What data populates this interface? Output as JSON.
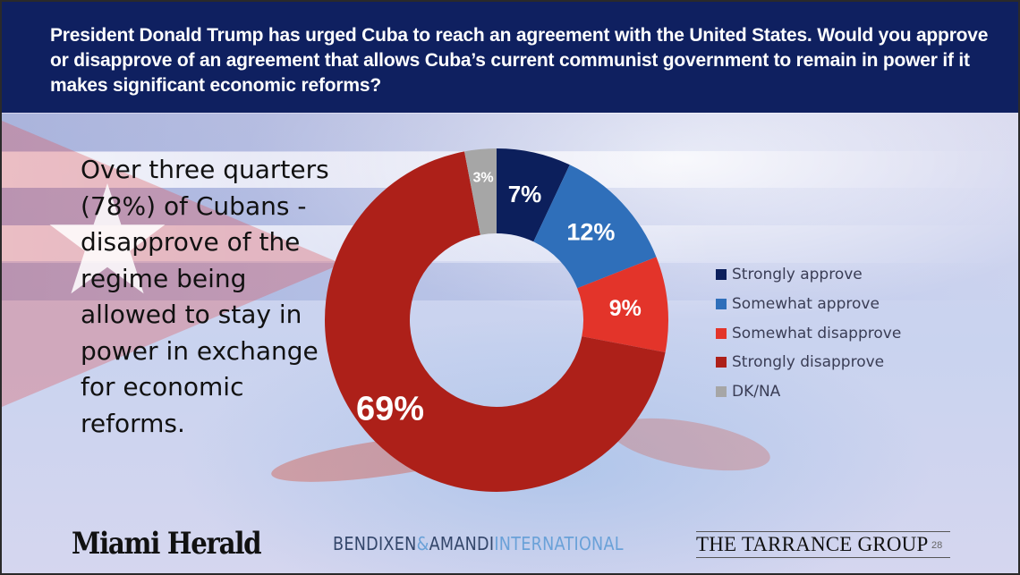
{
  "header": {
    "question": "President Donald Trump has urged Cuba to reach an agreement with the United States. Would you approve or disapprove of an agreement that allows Cuba’s current communist government to remain in power if it makes significant economic reforms?"
  },
  "callout": {
    "text": "Over three quarters (78%) of Cubans - disapprove of the regime being allowed to stay in power in exchange for economic reforms."
  },
  "chart_data": {
    "type": "pie",
    "variant": "donut",
    "title": "President Donald Trump has urged Cuba to reach an agreement with the United States. Would you approve or disapprove of an agreement that allows Cuba’s current communist government to remain in power if it makes significant economic reforms?",
    "categories": [
      "Strongly approve",
      "Somewhat approve",
      "Somewhat disapprove",
      "Strongly disapprove",
      "DK/NA"
    ],
    "values": [
      7,
      12,
      9,
      69,
      3
    ],
    "labels": [
      "7%",
      "12%",
      "9%",
      "69%",
      "3%"
    ],
    "colors": [
      "#0c1f5c",
      "#2f6fba",
      "#e3342a",
      "#ad2019",
      "#a6a6a6"
    ],
    "legend_position": "right",
    "unit": "%"
  },
  "legend": {
    "items": [
      {
        "label": "Strongly approve",
        "color": "#0c1f5c"
      },
      {
        "label": "Somewhat approve",
        "color": "#2f6fba"
      },
      {
        "label": "Somewhat disapprove",
        "color": "#e3342a"
      },
      {
        "label": "Strongly disapprove",
        "color": "#ad2019"
      },
      {
        "label": "DK/NA",
        "color": "#a6a6a6"
      }
    ]
  },
  "footer": {
    "miami_herald": "Miami Herald",
    "bendixen_dark": "BENDIXEN",
    "bendixen_amp": "&",
    "bendixen_amandi": "AMANDI",
    "bendixen_light": "INTERNATIONAL",
    "tarrance": "THE TARRANCE GROUP",
    "page_number": "28"
  }
}
